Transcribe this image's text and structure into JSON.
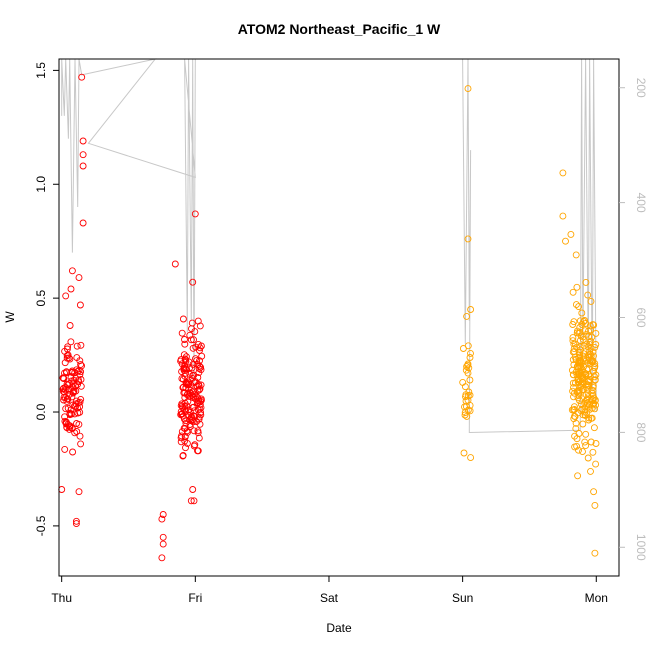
{
  "chart_data": {
    "type": "scatter",
    "title": "ATOM2 Northeast_Pacific_1 W",
    "xlabel": "Date",
    "ylabel": "W",
    "x_ticks": [
      "Thu",
      "Fri",
      "Sat",
      "Sun",
      "Mon"
    ],
    "xlim": [
      -0.02,
      4.17
    ],
    "ylim": [
      -0.72,
      1.55
    ],
    "y_ticks": [
      -0.5,
      0.0,
      0.5,
      1.0,
      1.5
    ],
    "y_tick_labels": [
      "-0.5",
      "0.0",
      "0.5",
      "1.0",
      "1.5"
    ],
    "y2_ticks": [
      200,
      400,
      600,
      800,
      1000
    ],
    "y2_tick_labels": [
      "200",
      "400",
      "600",
      "800",
      "1000"
    ],
    "y2lim": [
      1050,
      150
    ],
    "grid": false,
    "legend": "none",
    "colors": {
      "series_1": "#ff0000",
      "series_2": "#ffa500",
      "depth_line": "#c8c8c8"
    },
    "series": [
      {
        "clusters": [
          {
            "x_center": 0.08,
            "x_spread": 0.07,
            "y_mean": 0.08,
            "y_sd": 0.17,
            "n": 110,
            "outliers": [
              [
                0.15,
                1.47
              ],
              [
                0.16,
                1.19
              ],
              [
                0.16,
                1.13
              ],
              [
                0.16,
                1.08
              ],
              [
                0.16,
                0.83
              ],
              [
                0.08,
                0.62
              ],
              [
                0.03,
                0.51
              ],
              [
                0.07,
                0.54
              ],
              [
                0.13,
                0.59
              ],
              [
                0.14,
                0.47
              ],
              [
                0.11,
                -0.49
              ],
              [
                0.11,
                -0.48
              ],
              [
                0.13,
                -0.35
              ],
              [
                0.0,
                -0.34
              ]
            ]
          },
          {
            "x_center": 0.97,
            "x_spread": 0.08,
            "y_mean": 0.09,
            "y_sd": 0.19,
            "n": 170,
            "outliers": [
              [
                1.0,
                0.87
              ],
              [
                0.98,
                0.57
              ],
              [
                0.85,
                0.65
              ],
              [
                0.75,
                -0.64
              ],
              [
                0.76,
                -0.58
              ],
              [
                0.76,
                -0.55
              ],
              [
                0.75,
                -0.47
              ],
              [
                0.76,
                -0.45
              ],
              [
                0.97,
                -0.39
              ],
              [
                0.99,
                -0.39
              ],
              [
                0.98,
                -0.34
              ]
            ]
          }
        ]
      },
      {
        "clusters": [
          {
            "x_center": 3.03,
            "x_spread": 0.03,
            "y_mean": 0.12,
            "y_sd": 0.16,
            "n": 28,
            "outliers": [
              [
                3.04,
                1.42
              ],
              [
                3.04,
                0.76
              ],
              [
                3.06,
                0.45
              ],
              [
                3.03,
                0.42
              ],
              [
                3.01,
                -0.18
              ],
              [
                3.06,
                -0.2
              ]
            ]
          },
          {
            "x_center": 3.91,
            "x_spread": 0.09,
            "y_mean": 0.16,
            "y_sd": 0.21,
            "n": 230,
            "outliers": [
              [
                3.75,
                1.05
              ],
              [
                3.75,
                0.86
              ],
              [
                3.81,
                0.78
              ],
              [
                3.77,
                0.75
              ],
              [
                3.85,
                0.69
              ],
              [
                3.99,
                -0.62
              ],
              [
                3.99,
                -0.41
              ],
              [
                3.98,
                -0.35
              ],
              [
                3.86,
                -0.28
              ]
            ]
          }
        ]
      }
    ],
    "depth_line": [
      [
        0.0,
        1.3
      ],
      [
        0.0,
        1.55
      ],
      [
        0.02,
        1.3
      ],
      [
        0.03,
        1.55
      ],
      [
        0.05,
        1.2
      ],
      [
        0.06,
        1.55
      ],
      [
        0.08,
        0.7
      ],
      [
        0.1,
        1.55
      ],
      [
        0.12,
        0.9
      ],
      [
        0.13,
        1.55
      ],
      [
        0.15,
        1.48
      ],
      [
        0.7,
        1.55
      ],
      [
        0.2,
        1.18
      ],
      [
        1.0,
        1.03
      ],
      [
        0.92,
        1.55
      ],
      [
        0.94,
        0.35
      ],
      [
        0.95,
        1.55
      ],
      [
        0.97,
        0.4
      ],
      [
        0.98,
        1.55
      ],
      [
        0.99,
        0.1
      ],
      [
        1.0,
        1.55
      ],
      [
        1.25,
        1.55
      ],
      [
        3.0,
        1.55
      ],
      [
        3.02,
        0.3
      ],
      [
        3.04,
        1.55
      ],
      [
        3.05,
        0.4
      ],
      [
        3.06,
        1.15
      ],
      [
        3.05,
        -0.09
      ],
      [
        3.88,
        -0.08
      ],
      [
        3.89,
        1.55
      ],
      [
        3.9,
        0.3
      ],
      [
        3.92,
        1.55
      ],
      [
        3.94,
        0.2
      ],
      [
        3.95,
        1.55
      ],
      [
        3.97,
        0.1
      ],
      [
        3.98,
        1.55
      ],
      [
        4.0,
        0.0
      ]
    ]
  }
}
